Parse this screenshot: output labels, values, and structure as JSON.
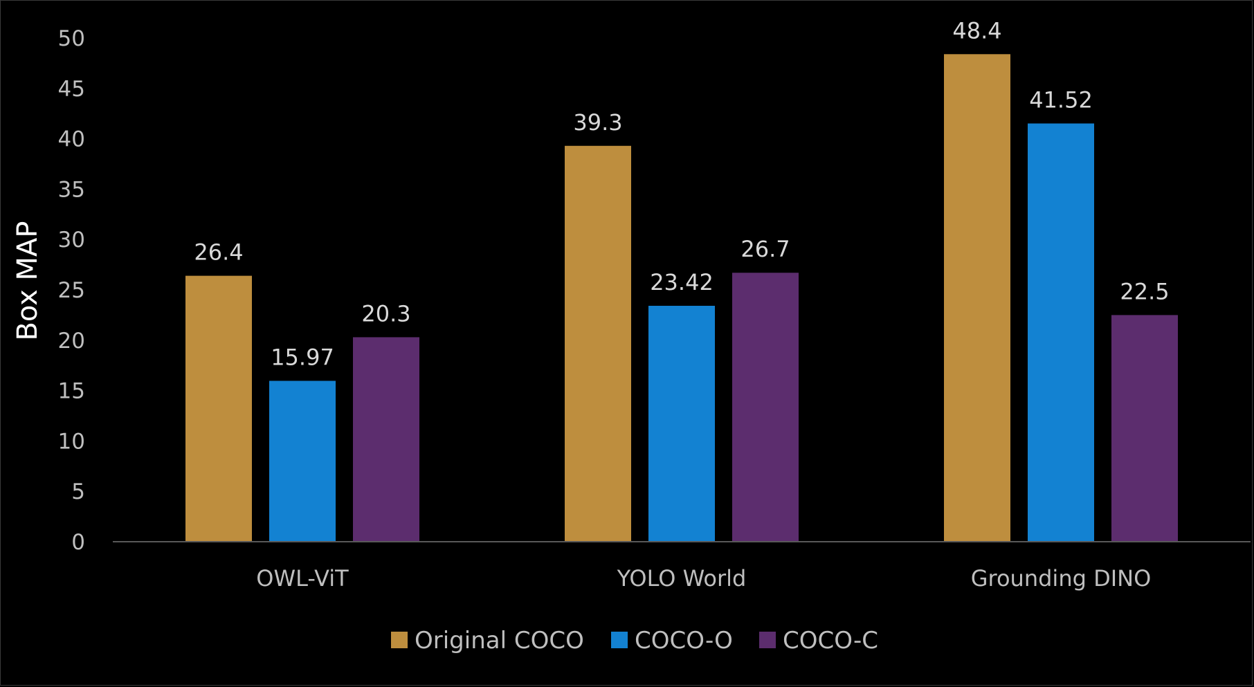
{
  "chart_data": {
    "type": "bar",
    "title": "",
    "xlabel": "",
    "ylabel": "Box MAP",
    "ylim": [
      0,
      50
    ],
    "yticks": [
      0,
      5,
      10,
      15,
      20,
      25,
      30,
      35,
      40,
      45,
      50
    ],
    "grid": false,
    "legend_position": "bottom",
    "categories": [
      "OWL-ViT",
      "YOLO World",
      "Grounding DINO"
    ],
    "series": [
      {
        "name": "Original COCO",
        "color": "#BE8E3E",
        "values": [
          26.4,
          39.3,
          48.4
        ],
        "labels": [
          "26.4",
          "39.3",
          "48.4"
        ]
      },
      {
        "name": "COCO-O",
        "color": "#1382D2",
        "values": [
          15.97,
          23.42,
          41.52
        ],
        "labels": [
          "15.97",
          "23.42",
          "41.52"
        ]
      },
      {
        "name": "COCO-C",
        "color": "#5C2D6E",
        "values": [
          20.3,
          26.7,
          22.5
        ],
        "labels": [
          "20.3",
          "26.7",
          "22.5"
        ]
      }
    ],
    "axis_color": "#595959"
  }
}
